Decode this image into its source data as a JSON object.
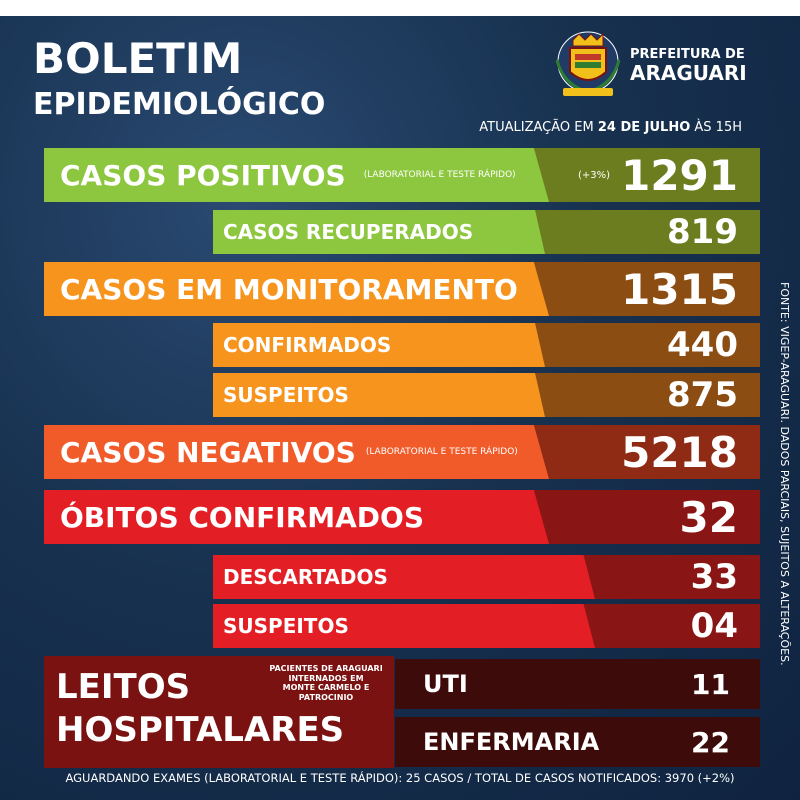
{
  "header": {
    "title_line1": "BOLETIM",
    "title_line2": "EPIDEMIOLÓGICO",
    "prefeitura_line1": "PREFEITURA DE",
    "prefeitura_line2": "ARAGUARI",
    "update_prefix": "ATUALIZAÇÃO EM ",
    "update_date": "24 DE JULHO",
    "update_time": " ÀS 15H"
  },
  "rows": {
    "positivos": {
      "label": "CASOS POSITIVOS",
      "note": "(LABORATORIAL E TESTE RÁPIDO)",
      "change": "(+3%)",
      "value": "1291"
    },
    "recuperados": {
      "label": "CASOS RECUPERADOS",
      "value": "819"
    },
    "monitoramento": {
      "label": "CASOS EM MONITORAMENTO",
      "value": "1315"
    },
    "confirmados": {
      "label": "CONFIRMADOS",
      "value": "440"
    },
    "suspeitos_monitoramento": {
      "label": "SUSPEITOS",
      "value": "875"
    },
    "negativos": {
      "label": "CASOS NEGATIVOS",
      "note": "(LABORATORIAL E TESTE RÁPIDO)",
      "value": "5218"
    },
    "obitos": {
      "label": "ÓBITOS CONFIRMADOS",
      "value": "32"
    },
    "descartados": {
      "label": "DESCARTADOS",
      "value": "33"
    },
    "suspeitos_obitos": {
      "label": "SUSPEITOS",
      "value": "04"
    }
  },
  "beds": {
    "title_line1": "LEITOS",
    "title_line2": "HOSPITALARES",
    "note_line1": "PACIENTES DE ARAGUARI INTERNADOS EM",
    "note_line2": "MONTE CARMELO E PATROCINIO",
    "uti_label": "UTI",
    "uti_value": "11",
    "enfermaria_label": "ENFERMARIA",
    "enfermaria_value": "22"
  },
  "side_note": "FONTE: VIGEP-ARAGUARI. DADOS PARCIAIS, SUJEITOS A ALTERAÇÕES.",
  "footer": "AGUARDANDO EXAMES (LABORATORIAL E TESTE RÁPIDO): 25 CASOS  /  TOTAL DE CASOS NOTIFICADOS: 3970 (+2%)",
  "colors": {
    "background": "#17314f",
    "green": "#8dc63f",
    "orange": "#f7941d",
    "red_orange": "#f15a29",
    "red": "#e31e24",
    "dark_red": "#7a1212"
  }
}
